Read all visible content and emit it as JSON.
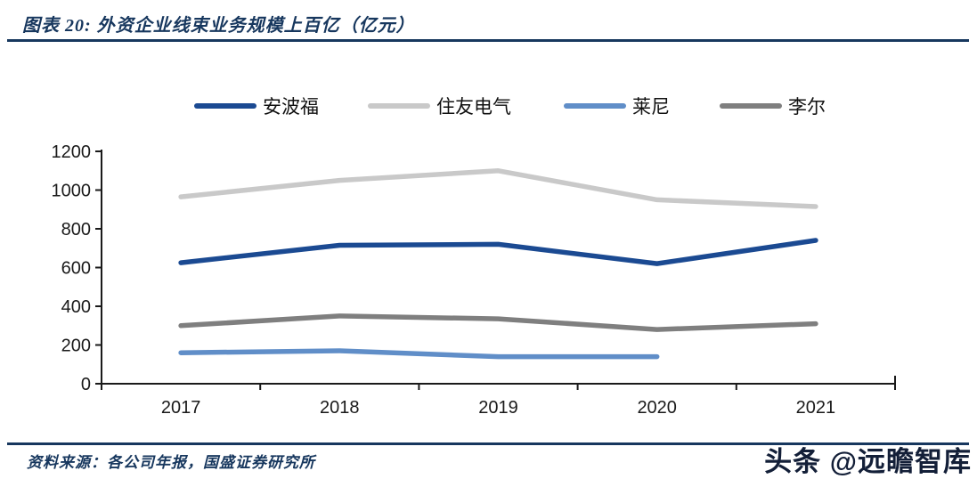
{
  "page": {
    "title": "图表 20: 外资企业线束业务规模上百亿（亿元）",
    "source": "资料来源：各公司年报，国盛证券研究所",
    "watermark": "头条 @远瞻智库"
  },
  "colors": {
    "divider_navy": "#17375e",
    "axis_black": "#1a1a1a",
    "watermark_navy": "#131f38"
  },
  "chart_data": {
    "type": "line",
    "title": "外资企业线束业务规模上百亿（亿元）",
    "categories": [
      "2017",
      "2018",
      "2019",
      "2020",
      "2021"
    ],
    "series": [
      {
        "name": "安波福",
        "color": "#1b4a92",
        "values": [
          625,
          715,
          720,
          620,
          740
        ]
      },
      {
        "name": "住友电气",
        "color": "#c9c9c9",
        "values": [
          965,
          1050,
          1100,
          950,
          915
        ]
      },
      {
        "name": "莱尼",
        "color": "#608ec8",
        "values": [
          160,
          170,
          140,
          140,
          null
        ]
      },
      {
        "name": "李尔",
        "color": "#7f7f7f",
        "values": [
          300,
          350,
          335,
          280,
          310
        ]
      }
    ],
    "xlabel": "",
    "ylabel": "",
    "ylim": [
      0,
      1200
    ],
    "ytick_step": 200,
    "grid": false,
    "legend_position": "top"
  }
}
